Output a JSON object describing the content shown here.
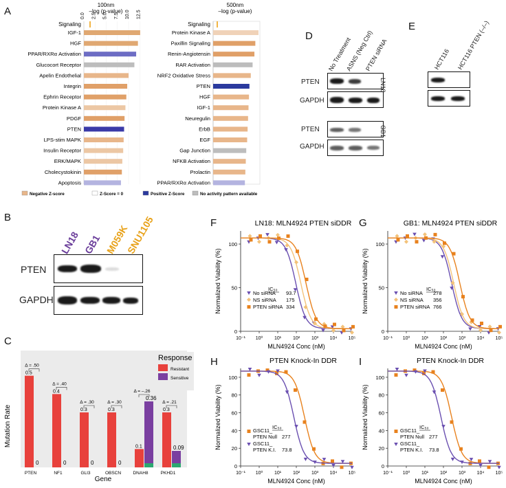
{
  "panel_letters": {
    "A": "A",
    "B": "B",
    "C": "C",
    "D": "D",
    "E": "E",
    "F": "F",
    "G": "G",
    "H": "H",
    "I": "I"
  },
  "panelA": {
    "left": {
      "title": "100nm",
      "subtitle": "–log (p-value)",
      "col_header": "Signaling",
      "ticks": [
        "0.0",
        "2.5",
        "5.0",
        "7.5",
        "10.0",
        "12.5"
      ],
      "rows": [
        {
          "label": "IGF-1",
          "value": 12.6,
          "color": "#e0a872"
        },
        {
          "label": "HGF",
          "value": 12.1,
          "color": "#e0a872"
        },
        {
          "label": "PPAR/RXRα Activation",
          "value": 11.7,
          "color": "#6d6dc4"
        },
        {
          "label": "Glucocort Receptor",
          "value": 11.3,
          "color": "#bdbdbd"
        },
        {
          "label": "Apelin Endothelial",
          "value": 10.0,
          "color": "#e8b68a"
        },
        {
          "label": "Integrin",
          "value": 9.7,
          "color": "#e0a068"
        },
        {
          "label": "Ephrin Receptor",
          "value": 9.5,
          "color": "#e0a068"
        },
        {
          "label": "Protein Kinase A",
          "value": 9.3,
          "color": "#ecc7a4"
        },
        {
          "label": "PDGF",
          "value": 9.1,
          "color": "#e0a068"
        },
        {
          "label": "PTEN",
          "value": 9.0,
          "color": "#3a3aa8"
        },
        {
          "label": "LPS-stim MAPK",
          "value": 8.9,
          "color": "#e8b68a"
        },
        {
          "label": "Insulin Receptor",
          "value": 8.8,
          "color": "#ecc7a4"
        },
        {
          "label": "ERK/MAPK",
          "value": 8.6,
          "color": "#ecc7a4"
        },
        {
          "label": "Cholecystokinin",
          "value": 8.5,
          "color": "#e0a068"
        },
        {
          "label": "Apoptosis",
          "value": 8.3,
          "color": "#b4b4e0"
        }
      ]
    },
    "right": {
      "title": "500nm",
      "subtitle": "–log (p-value)",
      "col_header": "Signaling",
      "rows": [
        {
          "label": "Protein Kinase A",
          "value": 1.0,
          "color": "#f0d2b8"
        },
        {
          "label": "Paxillin Signaling",
          "value": 0.93,
          "color": "#e0a068"
        },
        {
          "label": "Renin-Angiotensin",
          "value": 0.91,
          "color": "#e0a068"
        },
        {
          "label": "RAR Activation",
          "value": 0.87,
          "color": "#bdbdbd"
        },
        {
          "label": "NRF2 Oxidative Stress",
          "value": 0.83,
          "color": "#e8b68a"
        },
        {
          "label": "PTEN",
          "value": 0.8,
          "color": "#2b3a9e"
        },
        {
          "label": "HGF",
          "value": 0.79,
          "color": "#e8b68a"
        },
        {
          "label": "IGF-1",
          "value": 0.78,
          "color": "#e8b68a"
        },
        {
          "label": "Neuregulin",
          "value": 0.77,
          "color": "#e8b68a"
        },
        {
          "label": "ErbB",
          "value": 0.76,
          "color": "#e8b68a"
        },
        {
          "label": "EGF",
          "value": 0.75,
          "color": "#e8b68a"
        },
        {
          "label": "Gap Junction",
          "value": 0.73,
          "color": "#bdbdbd"
        },
        {
          "label": "NFKB Activation",
          "value": 0.72,
          "color": "#e8b68a"
        },
        {
          "label": "Prolactin",
          "value": 0.71,
          "color": "#e8b68a"
        },
        {
          "label": "PPAR/RXRα Activation",
          "value": 0.7,
          "color": "#b4b4e0"
        }
      ]
    },
    "legend": [
      {
        "label": "Negative Z-score",
        "color": "#e8b68a"
      },
      {
        "label": "Z-Score = 0",
        "color": "#ffffff"
      },
      {
        "label": "Positive Z-Score",
        "color": "#2b3a9e"
      },
      {
        "label": "No activity pattern available",
        "color": "#bdbdbd"
      }
    ]
  },
  "panelB": {
    "lanes": [
      {
        "label": "LN18",
        "color": "#6a3d9a"
      },
      {
        "label": "GB1",
        "color": "#6a3d9a"
      },
      {
        "label": "M059K",
        "color": "#e8a21a"
      },
      {
        "label": "SNU1105",
        "color": "#e8a21a"
      }
    ],
    "rows": [
      "PTEN",
      "GAPDH"
    ]
  },
  "panelD": {
    "lanes": [
      "No Treatment",
      "ASNS (Neg Ctrl)",
      "PTEN siRNA"
    ],
    "blocks": [
      {
        "label": "PTEN"
      },
      {
        "label": "GAPDH"
      },
      {
        "label": "PTEN"
      },
      {
        "label": "GAPDH"
      }
    ],
    "side_labels": [
      "LN18",
      "GB1"
    ]
  },
  "panelE": {
    "lanes": [
      "HCT116",
      "HCT116 PTEN (–/–)"
    ]
  },
  "panelC": {
    "legend_title": "Response",
    "legend": [
      {
        "label": "Resistant",
        "color": "#e8413c"
      },
      {
        "label": "Sensitive",
        "color": "#7a3fa0"
      }
    ],
    "ylabel": "Mutation Rate",
    "xlabel": "Gene",
    "genes": [
      "PTEN",
      "NF1",
      "GLI3",
      "OBSCN",
      "DNAH8",
      "PKHD1"
    ],
    "resistant": [
      0.5,
      0.4,
      0.3,
      0.3,
      0.1,
      0.3
    ],
    "sensitive": [
      0,
      0,
      0,
      0,
      0.36,
      0.09
    ],
    "res_labels": [
      "0.5",
      "0.4",
      "0.3",
      "0.3",
      "0.1",
      "0.3"
    ],
    "sen_labels": [
      "0",
      "0",
      "0",
      "0",
      "0.36",
      "0.09"
    ],
    "deltas": [
      "Δ = .50",
      "Δ = .40",
      "Δ = .30",
      "Δ = .30",
      "Δ = –.26",
      "Δ = .21"
    ]
  },
  "chart_data": [
    {
      "type": "line",
      "title": "LN18: MLN4924 PTEN siDDR",
      "xlabel": "MLN4924 Conc (nM)",
      "ylabel": "Normalized Viability (%)",
      "xticks": [
        "10⁻¹",
        "10⁰",
        "10¹",
        "10²",
        "10³",
        "10⁴",
        "10⁵"
      ],
      "yticks": [
        "0",
        "50",
        "100"
      ],
      "xlim_log": [
        -1,
        5
      ],
      "ylim": [
        0,
        115
      ],
      "ic50_label": "IC₅₀",
      "series": [
        {
          "name": "No siRNA",
          "ic50": 93.7,
          "ic50_text": "93.7",
          "color": "#6a4fb0",
          "marker": "tri"
        },
        {
          "name": "NS siRNA",
          "ic50": 175,
          "ic50_text": "175",
          "color": "#f3c27a",
          "marker": "diamond"
        },
        {
          "name": "PTEN siRNA",
          "ic50": 334,
          "ic50_text": "334",
          "color": "#e8821e",
          "marker": "square"
        }
      ]
    },
    {
      "type": "line",
      "title": "GB1: MLN4924 PTEN siDDR",
      "xlabel": "MLN4924 Conc (nM)",
      "ylabel": "Normalized Viability (%)",
      "xticks": [
        "10⁻¹",
        "10⁰",
        "10¹",
        "10²",
        "10³",
        "10⁴",
        "10⁵"
      ],
      "yticks": [
        "0",
        "50",
        "100"
      ],
      "xlim_log": [
        -1,
        5
      ],
      "ylim": [
        0,
        115
      ],
      "ic50_label": "IC₅₀",
      "series": [
        {
          "name": "No siRNA",
          "ic50": 278,
          "ic50_text": "278",
          "color": "#6a4fb0",
          "marker": "tri"
        },
        {
          "name": "NS siRNA",
          "ic50": 356,
          "ic50_text": "356",
          "color": "#f3c27a",
          "marker": "diamond"
        },
        {
          "name": "PTEN siRNA",
          "ic50": 766,
          "ic50_text": "766",
          "color": "#e8821e",
          "marker": "square"
        }
      ]
    },
    {
      "type": "line",
      "title": "PTEN Knock-In DDR",
      "xlabel": "MLN4924 Conc (nM)",
      "ylabel": "Normalized Viability (%)",
      "xticks": [
        "10⁻¹",
        "10⁰",
        "10¹",
        "10²",
        "10³",
        "10⁴",
        "10⁵"
      ],
      "yticks": [
        "0",
        "20",
        "40",
        "60",
        "80",
        "100"
      ],
      "xlim_log": [
        -1,
        5
      ],
      "ylim": [
        0,
        110
      ],
      "ic50_label": "IC₅₀",
      "series": [
        {
          "name": "GSC11_ PTEN Null",
          "ic50": 277,
          "ic50_text": "277",
          "color": "#e8821e",
          "marker": "square"
        },
        {
          "name": "GSC11_ PTEN K.I.",
          "ic50": 73.8,
          "ic50_text": "73.8",
          "color": "#6a4fb0",
          "marker": "tri"
        }
      ]
    },
    {
      "type": "line",
      "title": "PTEN Knock-In DDR",
      "xlabel": "MLN4924 Conc (nM)",
      "ylabel": "Normalized Viability (%)",
      "xticks": [
        "10⁻¹",
        "10⁰",
        "10¹",
        "10²",
        "10³",
        "10⁴",
        "10⁵"
      ],
      "yticks": [
        "0",
        "20",
        "40",
        "60",
        "80",
        "100"
      ],
      "xlim_log": [
        -1,
        5
      ],
      "ylim": [
        0,
        110
      ],
      "ic50_label": "IC₅₀",
      "series": [
        {
          "name": "GSC11_ PTEN Null",
          "ic50": 277,
          "ic50_text": "277",
          "color": "#e8821e",
          "marker": "square"
        },
        {
          "name": "GSC11_ PTEN K.I.",
          "ic50": 73.8,
          "ic50_text": "73.8",
          "color": "#6a4fb0",
          "marker": "tri"
        }
      ]
    }
  ]
}
